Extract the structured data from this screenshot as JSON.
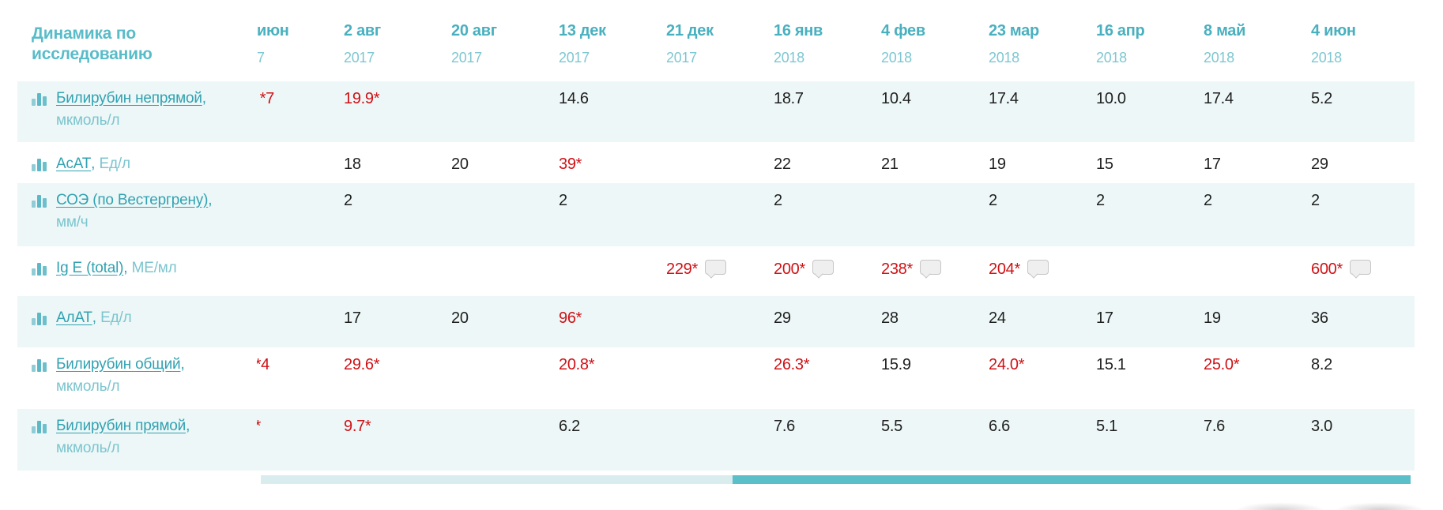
{
  "title": "Динамика по исследованию",
  "columns": [
    {
      "day": "июн",
      "year": "7",
      "partial": true
    },
    {
      "day": "2 авг",
      "year": "2017"
    },
    {
      "day": "20 авг",
      "year": "2017"
    },
    {
      "day": "13 дек",
      "year": "2017"
    },
    {
      "day": "21 дек",
      "year": "2017"
    },
    {
      "day": "16 янв",
      "year": "2018"
    },
    {
      "day": "4 фев",
      "year": "2018"
    },
    {
      "day": "23 мар",
      "year": "2018"
    },
    {
      "day": "16 апр",
      "year": "2018"
    },
    {
      "day": "8 май",
      "year": "2018"
    },
    {
      "day": "4 июн",
      "year": "2018"
    }
  ],
  "rows": [
    {
      "name": "Билирубин непрямой",
      "unit": "мкмоль/л",
      "two_line": true,
      "values": [
        {
          "text": "7*",
          "red": true,
          "partial": 22
        },
        {
          "text": "19.9*",
          "red": true
        },
        null,
        {
          "text": "14.6"
        },
        null,
        {
          "text": "18.7"
        },
        {
          "text": "10.4"
        },
        {
          "text": "17.4"
        },
        {
          "text": "10.0"
        },
        {
          "text": "17.4"
        },
        {
          "text": "5.2"
        }
      ]
    },
    {
      "name": "АсАТ",
      "unit": "Ед/л",
      "two_line": false,
      "values": [
        null,
        {
          "text": "18"
        },
        {
          "text": "20"
        },
        {
          "text": "39*",
          "red": true
        },
        null,
        {
          "text": "22"
        },
        {
          "text": "21"
        },
        {
          "text": "19"
        },
        {
          "text": "15"
        },
        {
          "text": "17"
        },
        {
          "text": "29"
        }
      ]
    },
    {
      "name": "СОЭ (по Вестергрену)",
      "unit": "мм/ч",
      "two_line": true,
      "values": [
        null,
        {
          "text": "2"
        },
        null,
        {
          "text": "2"
        },
        null,
        {
          "text": "2"
        },
        null,
        {
          "text": "2"
        },
        {
          "text": "2"
        },
        {
          "text": "2"
        },
        {
          "text": "2"
        }
      ]
    },
    {
      "name": "Ig E (total)",
      "unit": "МЕ/мл",
      "two_line": false,
      "values": [
        null,
        null,
        null,
        null,
        {
          "text": "229*",
          "red": true,
          "comment": true
        },
        {
          "text": "200*",
          "red": true,
          "comment": true
        },
        {
          "text": "238*",
          "red": true,
          "comment": true
        },
        {
          "text": "204*",
          "red": true,
          "comment": true
        },
        null,
        null,
        {
          "text": "600*",
          "red": true,
          "comment": true
        }
      ]
    },
    {
      "name": "АлАТ",
      "unit": "Ед/л",
      "two_line": false,
      "values": [
        null,
        {
          "text": "17"
        },
        {
          "text": "20"
        },
        {
          "text": "96*",
          "red": true
        },
        null,
        {
          "text": "29"
        },
        {
          "text": "28"
        },
        {
          "text": "24"
        },
        {
          "text": "17"
        },
        {
          "text": "19"
        },
        {
          "text": "36"
        }
      ]
    },
    {
      "name": "Билирубин общий",
      "unit": "мкмоль/л",
      "two_line": true,
      "values": [
        {
          "text": "4*",
          "red": true,
          "partial": 16
        },
        {
          "text": "29.6*",
          "red": true
        },
        null,
        {
          "text": "20.8*",
          "red": true
        },
        null,
        {
          "text": "26.3*",
          "red": true
        },
        {
          "text": "15.9"
        },
        {
          "text": "24.0*",
          "red": true
        },
        {
          "text": "15.1"
        },
        {
          "text": "25.0*",
          "red": true
        },
        {
          "text": "8.2"
        }
      ]
    },
    {
      "name": "Билирубин прямой",
      "unit": "мкмоль/л",
      "two_line": true,
      "values": [
        {
          "text": "*",
          "red": true,
          "partial": 5
        },
        {
          "text": "9.7*",
          "red": true
        },
        null,
        {
          "text": "6.2"
        },
        null,
        {
          "text": "7.6"
        },
        {
          "text": "5.5"
        },
        {
          "text": "6.6"
        },
        {
          "text": "5.1"
        },
        {
          "text": "7.6"
        },
        {
          "text": "3.0"
        }
      ]
    }
  ],
  "icons": {
    "row_icon": "bar-chart-icon",
    "comment_icon": "speech-bubble-icon"
  },
  "colors": {
    "header_teal": "#49b0bf",
    "header_year_teal": "#7fc7d1",
    "title_teal": "#58bcc9",
    "link_teal": "#32a2b2",
    "unit_teal": "#7cc5cf",
    "row_stripe": "#edf7f7",
    "alert_red": "#cf1115",
    "value_black": "#1f1f1f",
    "scrollbar_thumb": "#5bbfca",
    "scrollbar_track": "#d9edee"
  }
}
